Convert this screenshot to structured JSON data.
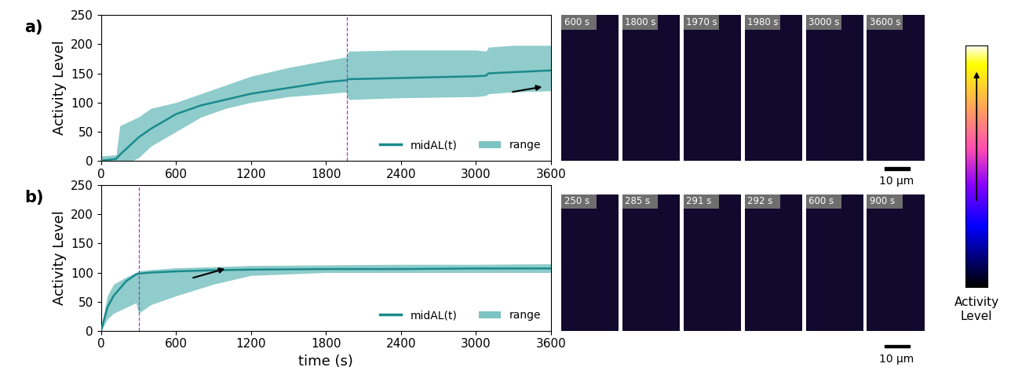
{
  "chart_data": [
    {
      "type": "line",
      "label": "a)",
      "x": [
        0,
        120,
        150,
        200,
        250,
        300,
        400,
        600,
        800,
        1000,
        1200,
        1500,
        1800,
        1960,
        1980,
        2400,
        3000,
        3080,
        3100,
        3300,
        3600
      ],
      "series": [
        {
          "name": "midAL(t)",
          "color": "#1b8a8c",
          "type": "line",
          "values": [
            0,
            3,
            10,
            20,
            30,
            40,
            55,
            80,
            95,
            105,
            115,
            125,
            135,
            138,
            140,
            142,
            145,
            146,
            150,
            152,
            155
          ]
        },
        {
          "name": "range",
          "color": "#7cc4c2",
          "type": "area",
          "lower": [
            0,
            0,
            0,
            0,
            0,
            5,
            25,
            50,
            75,
            90,
            100,
            110,
            115,
            118,
            105,
            108,
            110,
            112,
            115,
            118,
            120
          ],
          "upper": [
            8,
            10,
            60,
            65,
            70,
            75,
            90,
            100,
            115,
            130,
            145,
            160,
            172,
            178,
            188,
            190,
            190,
            188,
            195,
            198,
            198
          ]
        }
      ],
      "vline": {
        "x": 1970,
        "color": "#a040c0",
        "line_style": "dashed"
      },
      "y_label": "Activity Level",
      "xlim": [
        0,
        3600
      ],
      "xticks": [
        0,
        600,
        1200,
        1800,
        2400,
        3000,
        3600
      ],
      "ylim": [
        0,
        250
      ],
      "yticks": [
        0,
        50,
        100,
        150,
        200,
        250
      ],
      "legend": "lower right",
      "frames": {
        "times": [
          "600 s",
          "1800 s",
          "1970 s",
          "1980 s",
          "3000 s",
          "3600 s"
        ],
        "scale_bar": "10 µm"
      }
    },
    {
      "type": "line",
      "label": "b)",
      "x": [
        0,
        50,
        100,
        200,
        280,
        300,
        400,
        600,
        900,
        1200,
        1800,
        2400,
        3000,
        3600
      ],
      "series": [
        {
          "name": "midAL(t)",
          "color": "#1b8a8c",
          "type": "line",
          "values": [
            0,
            40,
            60,
            85,
            97,
            98,
            100,
            102,
            104,
            105,
            106,
            106,
            107,
            107
          ]
        },
        {
          "name": "range",
          "color": "#7cc4c2",
          "type": "area",
          "lower": [
            0,
            20,
            30,
            40,
            48,
            30,
            45,
            60,
            80,
            95,
            100,
            100,
            100,
            100
          ],
          "upper": [
            5,
            60,
            80,
            92,
            100,
            103,
            105,
            108,
            110,
            112,
            113,
            114,
            114,
            115
          ]
        }
      ],
      "vline": {
        "x": 300,
        "color": "#a040c0",
        "line_style": "dashed"
      },
      "x_label": "time (s)",
      "y_label": "Activity Level",
      "xlim": [
        0,
        3600
      ],
      "xticks": [
        0,
        600,
        1200,
        1800,
        2400,
        3000,
        3600
      ],
      "ylim": [
        0,
        250
      ],
      "yticks": [
        0,
        50,
        100,
        150,
        200,
        250
      ],
      "legend": "lower right",
      "frames": {
        "times": [
          "250 s",
          "285 s",
          "291 s",
          "292 s",
          "600 s",
          "900 s"
        ],
        "scale_bar": "10 µm"
      }
    }
  ],
  "colorbar": {
    "label": "Activity\nLevel"
  }
}
